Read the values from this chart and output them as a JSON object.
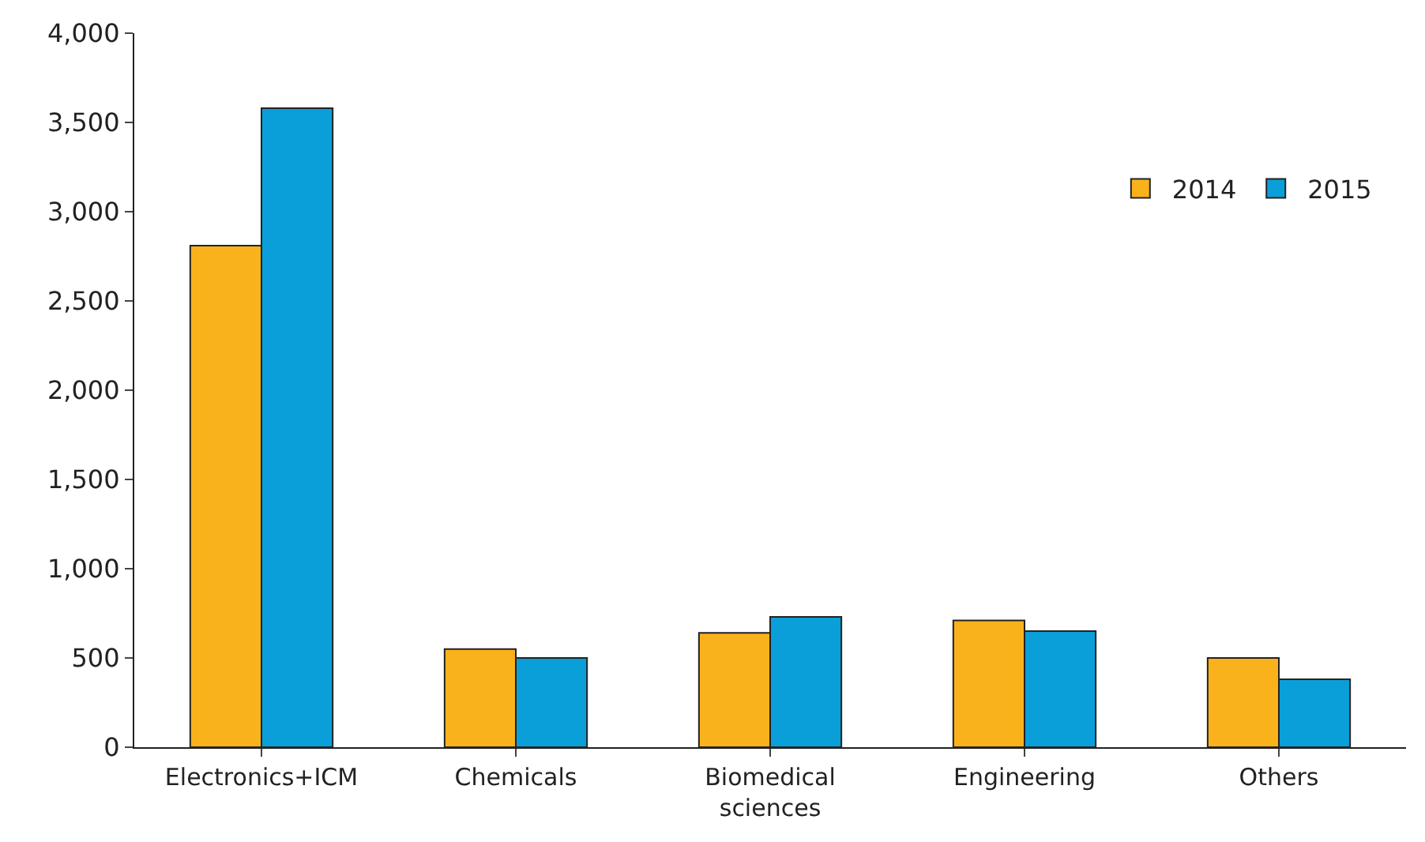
{
  "chart_data": {
    "type": "bar",
    "categories": [
      "Electronics+ICM",
      "Chemicals",
      "Biomedical\nsciences",
      "Engineering",
      "Others"
    ],
    "series": [
      {
        "name": "2014",
        "color": "#f9b21b",
        "values": [
          2810,
          550,
          640,
          710,
          500
        ]
      },
      {
        "name": "2015",
        "color": "#0a9fd8",
        "values": [
          3580,
          500,
          730,
          650,
          380
        ]
      }
    ],
    "ylim": [
      0,
      4000
    ],
    "yticks": [
      {
        "value": 0,
        "label": "0"
      },
      {
        "value": 500,
        "label": "500"
      },
      {
        "value": 1000,
        "label": "1,000"
      },
      {
        "value": 1500,
        "label": "1,500"
      },
      {
        "value": 2000,
        "label": "2,000"
      },
      {
        "value": 2500,
        "label": "2,500"
      },
      {
        "value": 3000,
        "label": "3,000"
      },
      {
        "value": 3500,
        "label": "3,500"
      },
      {
        "value": 4000,
        "label": "4,000"
      }
    ],
    "legend": "top right"
  }
}
